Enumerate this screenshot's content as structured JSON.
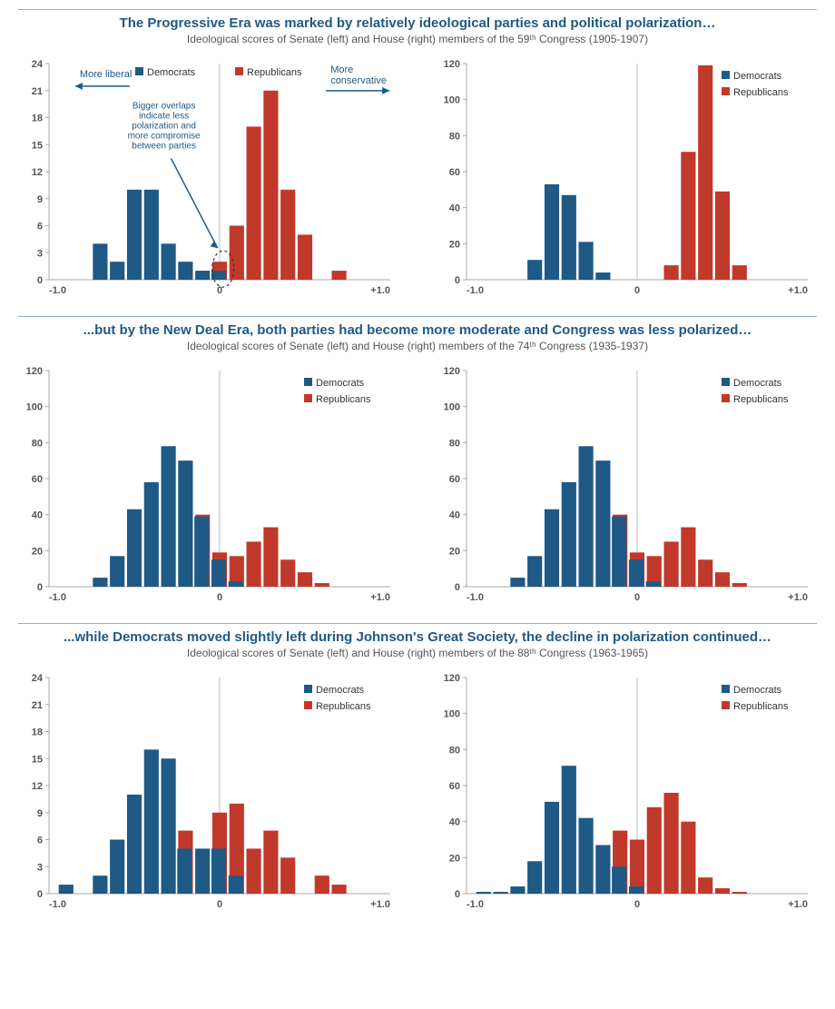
{
  "colors": {
    "dem": "#1f5985",
    "rep": "#c0392b",
    "title": "#1f5985",
    "axis": "#aaaaaa",
    "grid": "#e0e0e0"
  },
  "legend": {
    "dem": "Democrats",
    "rep": "Republicans"
  },
  "sections": [
    {
      "title": "The Progressive Era was marked by relatively ideological parties and political polarization…",
      "subtitle": "Ideological scores of Senate (left) and House (right) members of the 59ᵗʰ Congress (1905-1907)",
      "annotations": {
        "more_liberal": "More liberal",
        "more_conservative": "More\nconservative",
        "overlap": "Bigger overlaps\nindicate less\npolarization and\nmore compromise\nbetween parties"
      },
      "charts": [
        {
          "type": "bar",
          "ylim": [
            0,
            24
          ],
          "ytick_step": 3,
          "xlim": [
            -1.0,
            1.0
          ],
          "xticks": [
            -1.0,
            0,
            1.0
          ],
          "legend_pos": "top-inner",
          "categories": [
            -0.9,
            -0.8,
            -0.7,
            -0.6,
            -0.5,
            -0.4,
            -0.3,
            -0.2,
            -0.1,
            0.0,
            0.1,
            0.2,
            0.3,
            0.4,
            0.5,
            0.6,
            0.7,
            0.8,
            0.9
          ],
          "dem": [
            0,
            0,
            4,
            2,
            10,
            10,
            4,
            2,
            1,
            1,
            0,
            0,
            0,
            0,
            0,
            0,
            0,
            0,
            0
          ],
          "rep": [
            0,
            0,
            0,
            0,
            0,
            0,
            0,
            0,
            0,
            2,
            6,
            17,
            21,
            10,
            5,
            0,
            1,
            0,
            0
          ],
          "show_anno": true
        },
        {
          "type": "bar",
          "ylim": [
            0,
            120
          ],
          "ytick_step": 20,
          "xlim": [
            -1.0,
            1.0
          ],
          "xticks": [
            -1.0,
            0,
            1.0
          ],
          "legend_pos": "top-right",
          "categories": [
            -0.9,
            -0.8,
            -0.7,
            -0.6,
            -0.5,
            -0.4,
            -0.3,
            -0.2,
            -0.1,
            0.0,
            0.1,
            0.2,
            0.3,
            0.4,
            0.5,
            0.6,
            0.7,
            0.8,
            0.9
          ],
          "dem": [
            0,
            0,
            0,
            11,
            53,
            47,
            21,
            4,
            0,
            0,
            0,
            0,
            0,
            0,
            0,
            0,
            0,
            0,
            0
          ],
          "rep": [
            0,
            0,
            0,
            0,
            0,
            0,
            0,
            0,
            0,
            0,
            0,
            8,
            71,
            119,
            49,
            8,
            0,
            0,
            0
          ]
        }
      ]
    },
    {
      "title": "...but by the New Deal Era, both parties had become more moderate and Congress was less polarized…",
      "subtitle": "Ideological scores of Senate (left) and House (right) members of the 74ᵗʰ Congress (1935-1937)",
      "charts": [
        {
          "type": "bar",
          "ylim": [
            0,
            120
          ],
          "ytick_step": 20,
          "xlim": [
            -1.0,
            1.0
          ],
          "xticks": [
            -1.0,
            0,
            1.0
          ],
          "legend_pos": "top-right",
          "categories": [
            -0.9,
            -0.8,
            -0.7,
            -0.6,
            -0.5,
            -0.4,
            -0.3,
            -0.2,
            -0.1,
            0.0,
            0.1,
            0.2,
            0.3,
            0.4,
            0.5,
            0.6,
            0.7,
            0.8,
            0.9
          ],
          "dem": [
            0,
            0,
            5,
            17,
            43,
            58,
            78,
            70,
            39,
            15,
            3,
            0,
            0,
            0,
            0,
            0,
            0,
            0,
            0
          ],
          "rep": [
            0,
            0,
            0,
            0,
            0,
            0,
            0,
            0,
            40,
            19,
            17,
            25,
            33,
            15,
            8,
            2,
            0,
            0,
            0
          ]
        },
        {
          "type": "bar",
          "ylim": [
            0,
            120
          ],
          "ytick_step": 20,
          "xlim": [
            -1.0,
            1.0
          ],
          "xticks": [
            -1.0,
            0,
            1.0
          ],
          "legend_pos": "top-right",
          "categories": [
            -0.9,
            -0.8,
            -0.7,
            -0.6,
            -0.5,
            -0.4,
            -0.3,
            -0.2,
            -0.1,
            0.0,
            0.1,
            0.2,
            0.3,
            0.4,
            0.5,
            0.6,
            0.7,
            0.8,
            0.9
          ],
          "dem": [
            0,
            0,
            5,
            17,
            43,
            58,
            78,
            70,
            39,
            15,
            3,
            0,
            0,
            0,
            0,
            0,
            0,
            0,
            0
          ],
          "rep": [
            0,
            0,
            0,
            0,
            0,
            0,
            0,
            0,
            40,
            19,
            17,
            25,
            33,
            15,
            8,
            2,
            0,
            0,
            0
          ]
        }
      ]
    },
    {
      "title": "...while Democrats moved slightly left during Johnson's Great Society, the decline in polarization continued…",
      "subtitle": "Ideological scores of Senate (left) and House (right) members of the 88ᵗʰ Congress (1963-1965)",
      "charts": [
        {
          "type": "bar",
          "ylim": [
            0,
            24
          ],
          "ytick_step": 3,
          "xlim": [
            -1.0,
            1.0
          ],
          "xticks": [
            -1.0,
            0,
            1.0
          ],
          "legend_pos": "top-right",
          "categories": [
            -0.9,
            -0.8,
            -0.7,
            -0.6,
            -0.5,
            -0.4,
            -0.3,
            -0.2,
            -0.1,
            0.0,
            0.1,
            0.2,
            0.3,
            0.4,
            0.5,
            0.6,
            0.7,
            0.8,
            0.9
          ],
          "dem": [
            1,
            0,
            2,
            6,
            11,
            16,
            15,
            5,
            5,
            5,
            2,
            0,
            0,
            0,
            0,
            0,
            0,
            0,
            0
          ],
          "rep": [
            0,
            0,
            0,
            0,
            0,
            0,
            0,
            7,
            0,
            9,
            10,
            5,
            7,
            4,
            0,
            2,
            1,
            0,
            0
          ]
        },
        {
          "type": "bar",
          "ylim": [
            0,
            120
          ],
          "ytick_step": 20,
          "xlim": [
            -1.0,
            1.0
          ],
          "xticks": [
            -1.0,
            0,
            1.0
          ],
          "legend_pos": "top-right",
          "categories": [
            -0.9,
            -0.8,
            -0.7,
            -0.6,
            -0.5,
            -0.4,
            -0.3,
            -0.2,
            -0.1,
            0.0,
            0.1,
            0.2,
            0.3,
            0.4,
            0.5,
            0.6,
            0.7,
            0.8,
            0.9
          ],
          "dem": [
            1,
            1,
            4,
            18,
            51,
            71,
            42,
            27,
            15,
            4,
            0,
            0,
            0,
            0,
            0,
            0,
            0,
            0,
            0
          ],
          "rep": [
            0,
            0,
            0,
            0,
            0,
            0,
            0,
            0,
            35,
            30,
            48,
            56,
            40,
            9,
            3,
            1,
            0,
            0,
            0
          ]
        }
      ]
    }
  ]
}
